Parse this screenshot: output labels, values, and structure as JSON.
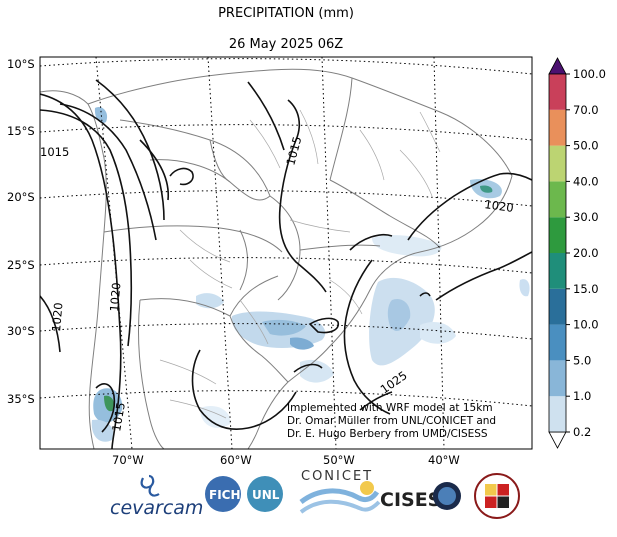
{
  "title": "PRECIPITATION (mm)",
  "subtitle": "26 May 2025 06Z",
  "lat_labels": [
    "10°S",
    "15°S",
    "20°S",
    "25°S",
    "30°S",
    "35°S"
  ],
  "lon_labels": [
    "70°W",
    "60°W",
    "50°W",
    "40°W"
  ],
  "isobar_labels": [
    "1015",
    "1015",
    "1020",
    "1020",
    "1020",
    "1015",
    "1025"
  ],
  "colorbar": {
    "levels": [
      "0.2",
      "1.0",
      "5.0",
      "10.0",
      "15.0",
      "20.0",
      "30.0",
      "40.0",
      "50.0",
      "70.0",
      "100.0"
    ],
    "colors": [
      "#ffffff",
      "#cfe1ef",
      "#89b6d8",
      "#4a8fc0",
      "#2a6f9a",
      "#1f8e7a",
      "#2e9a3e",
      "#6cb84d",
      "#bcd472",
      "#e9905b",
      "#c9405a",
      "#8d1d60",
      "#4b1170"
    ]
  },
  "credit": [
    "Implemented with WRF model at 15km",
    "Dr. Omar Müller from UNL/CONICET and",
    "Dr. E. Hugo Berbery from UMD/CISESS"
  ],
  "logos": {
    "cevarcam": "cevarcam",
    "fich": "FICH",
    "unl": "UNL",
    "conicet": "CONICET",
    "cisess": "CISESS"
  }
}
